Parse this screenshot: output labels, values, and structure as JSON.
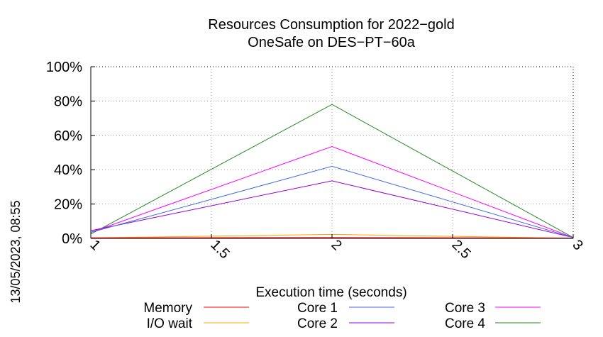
{
  "chart_data": {
    "type": "line",
    "title": [
      "Resources Consumption for 2022−gold",
      "OneSafe on DES−PT−60a"
    ],
    "xlabel": "Execution time (seconds)",
    "ylabel": "",
    "x": [
      1,
      2,
      3
    ],
    "xlim": [
      1,
      3
    ],
    "ylim": [
      0,
      100
    ],
    "x_ticks": [
      {
        "value": 1,
        "label": "1"
      },
      {
        "value": 1.5,
        "label": "1.5"
      },
      {
        "value": 2,
        "label": "2"
      },
      {
        "value": 2.5,
        "label": "2.5"
      },
      {
        "value": 3,
        "label": "3"
      }
    ],
    "y_ticks": [
      {
        "value": 0,
        "label": "0%"
      },
      {
        "value": 20,
        "label": "20%"
      },
      {
        "value": 40,
        "label": "40%"
      },
      {
        "value": 60,
        "label": "60%"
      },
      {
        "value": 80,
        "label": "80%"
      },
      {
        "value": 100,
        "label": "100%"
      }
    ],
    "grid": true,
    "legend_position": "bottom",
    "series": [
      {
        "name": "Memory",
        "color": "#ff0000",
        "values": [
          0.3,
          0.5,
          0.2
        ]
      },
      {
        "name": "I/O wait",
        "color": "#ffa500",
        "values": [
          0.3,
          2.3,
          0.1
        ]
      },
      {
        "name": "Core 1",
        "color": "#4169e1",
        "values": [
          3.5,
          42,
          0.5
        ]
      },
      {
        "name": "Core 2",
        "color": "#9400d3",
        "values": [
          4.5,
          33.5,
          0.5
        ]
      },
      {
        "name": "Core 3",
        "color": "#ff00ff",
        "values": [
          3.5,
          53.5,
          0.5
        ]
      },
      {
        "name": "Core 4",
        "color": "#228b22",
        "values": [
          2.5,
          78,
          0.5
        ]
      }
    ]
  },
  "timestamp": "13/05/2023, 08:55"
}
